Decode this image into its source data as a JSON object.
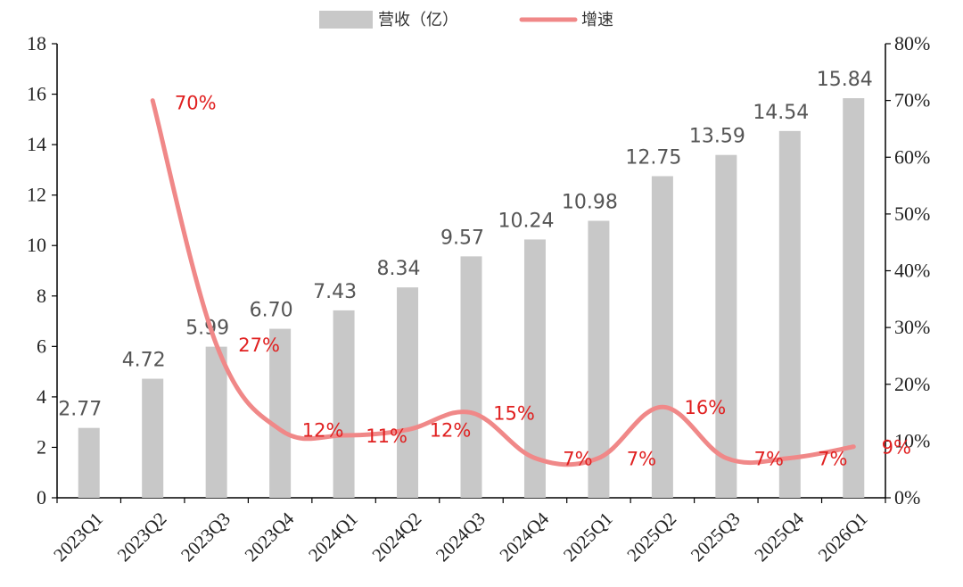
{
  "chart_data": {
    "type": "bar",
    "categories": [
      "2023Q1",
      "2023Q2",
      "2023Q3",
      "2023Q4",
      "2024Q1",
      "2024Q2",
      "2024Q3",
      "2024Q4",
      "2025Q1",
      "2025Q2",
      "2025Q3",
      "2025Q4",
      "2026Q1"
    ],
    "series": [
      {
        "name": "营收（亿）",
        "type": "bar",
        "axis": "left",
        "values": [
          2.77,
          4.72,
          5.99,
          6.7,
          7.43,
          8.34,
          9.57,
          10.24,
          10.98,
          12.75,
          13.59,
          14.54,
          15.84
        ],
        "labels": [
          "2.77",
          "4.72",
          "5.99",
          "6.70",
          "7.43",
          "8.34",
          "9.57",
          "10.24",
          "10.98",
          "12.75",
          "13.59",
          "14.54",
          "15.84"
        ],
        "color": "#c8c8c8"
      },
      {
        "name": "增速",
        "type": "line",
        "axis": "right",
        "values": [
          null,
          70,
          27,
          12,
          11,
          12,
          15,
          7,
          7,
          16,
          7,
          7,
          9
        ],
        "labels": [
          null,
          "70%",
          "27%",
          "12%",
          "11%",
          "12%",
          "15%",
          "7%",
          "7%",
          "16%",
          "7%",
          "7%",
          "9%"
        ],
        "color": "#f08888",
        "label_color": "#e02020"
      }
    ],
    "left_axis": {
      "ylim": [
        0,
        18
      ],
      "ticks": [
        "0",
        "2",
        "4",
        "6",
        "8",
        "10",
        "12",
        "14",
        "16",
        "18"
      ]
    },
    "right_axis": {
      "ylim": [
        0,
        80
      ],
      "ticks": [
        "0%",
        "10%",
        "20%",
        "30%",
        "40%",
        "50%",
        "60%",
        "70%",
        "80%"
      ]
    },
    "grid": false,
    "legend_position": "top-center"
  }
}
